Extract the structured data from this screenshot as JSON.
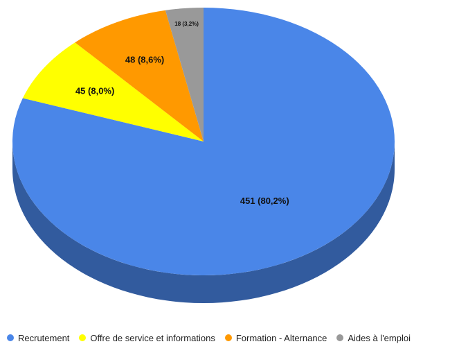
{
  "chart_data": {
    "type": "pie",
    "style": "3d",
    "categories": [
      "Recrutement",
      "Offre de service et informations",
      "Formation - Alternance",
      "Aides à l'emploi"
    ],
    "values": [
      451,
      45,
      48,
      18
    ],
    "data_labels": [
      "451 (80,2%)",
      "45 (8,0%)",
      "48 (8,6%)",
      "18 (3,2%)"
    ],
    "colors": [
      "#4a86e8",
      "#ffff00",
      "#ff9900",
      "#999999"
    ],
    "legend_position": "bottom"
  },
  "legend": {
    "items": [
      {
        "label": "Recrutement",
        "color": "#4a86e8"
      },
      {
        "label": "Offre de service et informations",
        "color": "#ffff00"
      },
      {
        "label": "Formation - Alternance",
        "color": "#ff9900"
      },
      {
        "label": "Aides à l'emploi",
        "color": "#999999"
      }
    ]
  }
}
